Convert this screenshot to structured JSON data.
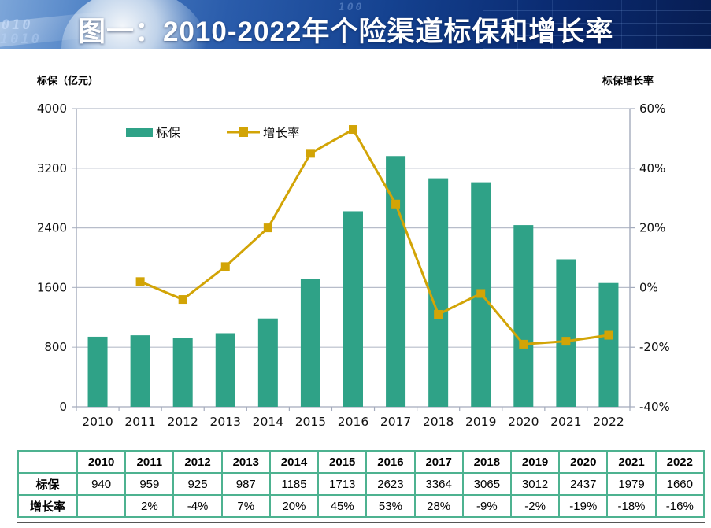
{
  "header": {
    "title": "图一：2010-2022年个险渠道标保和增长率",
    "decor_digits_1": "010",
    "decor_digits_2": "1010",
    "decor_digits_3": "100"
  },
  "chart_data": {
    "type": "combo",
    "categories": [
      "2010",
      "2011",
      "2012",
      "2013",
      "2014",
      "2015",
      "2016",
      "2017",
      "2018",
      "2019",
      "2020",
      "2021",
      "2022"
    ],
    "series": [
      {
        "name": "标保",
        "type": "bar",
        "axis": "left",
        "values": [
          940,
          959,
          925,
          987,
          1185,
          1713,
          2623,
          3364,
          3065,
          3012,
          2437,
          1979,
          1660
        ]
      },
      {
        "name": "增长率",
        "type": "line",
        "axis": "right",
        "unit": "%",
        "values": [
          null,
          2,
          -4,
          7,
          20,
          45,
          53,
          28,
          -9,
          -2,
          -19,
          -18,
          -16
        ]
      }
    ],
    "left_axis": {
      "title": "标保（亿元）",
      "min": 0,
      "max": 4000,
      "step": 800
    },
    "right_axis": {
      "title": "标保增长率",
      "min": -40,
      "max": 60,
      "step": 20,
      "format": "percent"
    },
    "grid": true,
    "legend_position": "top-left-inside"
  },
  "table": {
    "corner": "",
    "years": [
      "2010",
      "2011",
      "2012",
      "2013",
      "2014",
      "2015",
      "2016",
      "2017",
      "2018",
      "2019",
      "2020",
      "2021",
      "2022"
    ],
    "rows": [
      {
        "label": "标保",
        "values": [
          "940",
          "959",
          "925",
          "987",
          "1185",
          "1713",
          "2623",
          "3364",
          "3065",
          "3012",
          "2437",
          "1979",
          "1660"
        ]
      },
      {
        "label": "增长率",
        "values": [
          "",
          "2%",
          "-4%",
          "7%",
          "20%",
          "45%",
          "53%",
          "28%",
          "-9%",
          "-2%",
          "-19%",
          "-18%",
          "-16%"
        ]
      }
    ]
  },
  "colors": {
    "bar": "#2fa287",
    "line": "#d2a406",
    "grid": "#b7bdca",
    "axis": "#a4abbc",
    "tick_text": "#111111",
    "table_border": "#4db290",
    "banner_text": "#ffffff"
  }
}
